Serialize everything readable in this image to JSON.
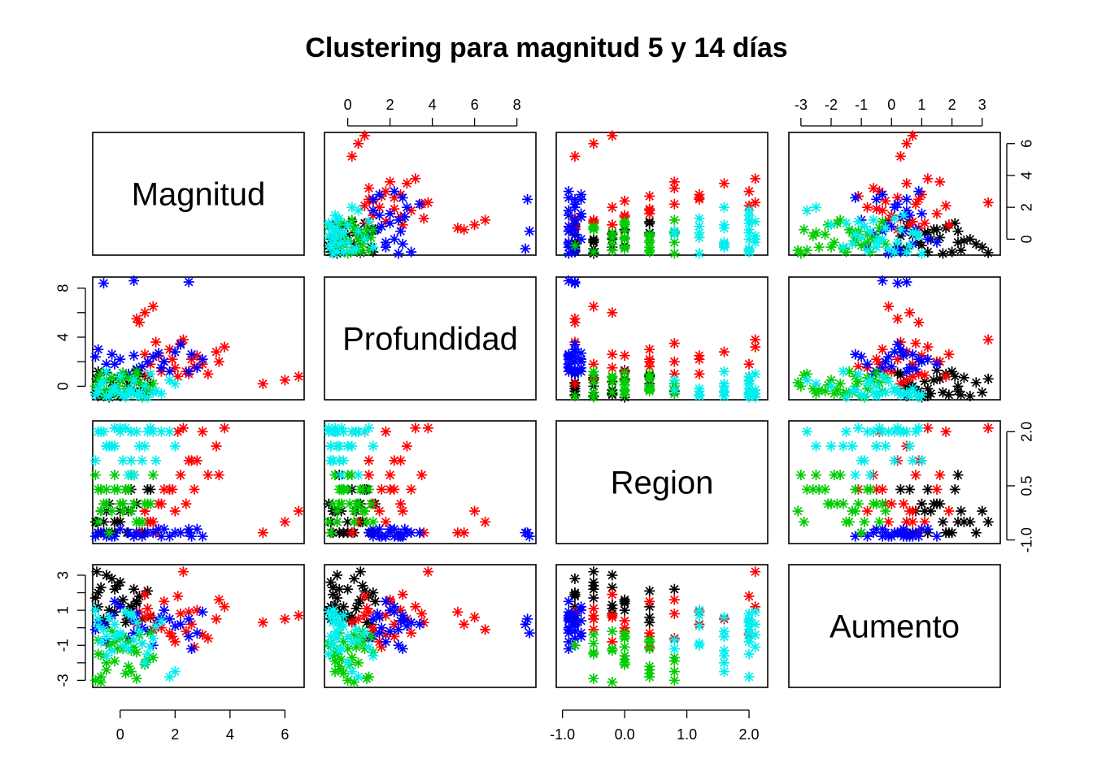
{
  "chart_data": {
    "type": "scatter",
    "title": "Clustering para magnitud 5 y 14 días",
    "variables": [
      {
        "name": "Magnitud",
        "range": [
          -1.0,
          6.7
        ],
        "ticks": [
          0,
          2,
          4,
          6
        ]
      },
      {
        "name": "Profundidad",
        "range": [
          -1.1,
          8.9
        ],
        "ticks": [
          0,
          2,
          4,
          6,
          8
        ]
      },
      {
        "name": "Region",
        "range": [
          -1.1,
          2.3
        ],
        "ticks": [
          -1.0,
          0.0,
          1.0,
          2.0
        ],
        "tick_labels": [
          "-1.0",
          "0.0",
          "1.0",
          "2.0"
        ],
        "side_ticks": [
          -1.0,
          0.5,
          2.0
        ],
        "side_tick_labels": [
          "-1.0",
          "0.5",
          "2.0"
        ]
      },
      {
        "name": "Aumento",
        "range": [
          -3.4,
          3.6
        ],
        "ticks": [
          -3,
          -2,
          -1,
          0,
          1,
          2,
          3
        ],
        "left_ticks": [
          -3,
          -1,
          1,
          3
        ]
      }
    ],
    "marker": "*",
    "clusters": [
      {
        "color": "#000000",
        "points": [
          [
            -0.8,
            -0.8,
            -0.8,
            1.2
          ],
          [
            -0.5,
            -0.5,
            -0.2,
            3.0
          ],
          [
            -0.2,
            0.0,
            -0.5,
            2.2
          ],
          [
            0.1,
            0.6,
            0.0,
            1.6
          ],
          [
            0.4,
            -0.2,
            0.4,
            1.2
          ],
          [
            -0.8,
            1.2,
            -0.8,
            2.0
          ],
          [
            -0.6,
            -0.8,
            -0.5,
            0.5
          ],
          [
            -0.3,
            0.3,
            -0.8,
            2.8
          ],
          [
            0.0,
            -0.6,
            -0.2,
            1.3
          ],
          [
            0.2,
            0.9,
            0.4,
            0.3
          ],
          [
            0.5,
            -0.4,
            0.8,
            2.2
          ],
          [
            0.7,
            1.0,
            -0.8,
            1.8
          ],
          [
            -0.7,
            0.2,
            -0.8,
            0.4
          ],
          [
            -0.4,
            -0.9,
            0.0,
            1.0
          ],
          [
            -0.1,
            0.7,
            -0.5,
            2.4
          ],
          [
            0.3,
            -0.3,
            -0.2,
            0.8
          ],
          [
            0.6,
            0.5,
            0.0,
            1.4
          ],
          [
            0.9,
            -0.7,
            -0.8,
            1.9
          ],
          [
            1.1,
            0.2,
            0.4,
            0.6
          ],
          [
            -0.9,
            -0.5,
            -0.5,
            1.7
          ],
          [
            -0.5,
            1.1,
            -0.8,
            0.2
          ],
          [
            0.0,
            -0.8,
            -0.5,
            2.6
          ],
          [
            0.4,
            0.4,
            -0.2,
            1.1
          ],
          [
            0.8,
            -0.2,
            -0.8,
            0.5
          ],
          [
            1.0,
            0.8,
            0.4,
            2.1
          ],
          [
            -0.85,
            0.6,
            -0.5,
            3.2
          ],
          [
            -0.2,
            -0.4,
            -0.8,
            0.9
          ],
          [
            0.6,
            1.3,
            0.0,
            1.5
          ],
          [
            -0.7,
            -0.7,
            -0.2,
            2.3
          ],
          [
            0.25,
            0.0,
            -0.8,
            0.7
          ]
        ]
      },
      {
        "color": "#ff0000",
        "points": [
          [
            0.6,
            5.5,
            -0.8,
            0.2
          ],
          [
            0.9,
            6.0,
            -0.2,
            0.6
          ],
          [
            1.2,
            6.5,
            -0.5,
            -0.1
          ],
          [
            0.7,
            5.2,
            -0.8,
            0.9
          ],
          [
            1.4,
            2.5,
            0.0,
            0.4
          ],
          [
            1.8,
            3.0,
            0.4,
            -0.3
          ],
          [
            2.2,
            3.5,
            0.8,
            0.8
          ],
          [
            2.6,
            2.2,
            1.2,
            0.2
          ],
          [
            3.0,
            1.8,
            2.0,
            -0.4
          ],
          [
            3.5,
            2.8,
            1.6,
            0.5
          ],
          [
            3.8,
            3.2,
            2.1,
            1.2
          ],
          [
            2.0,
            1.5,
            -0.2,
            -0.8
          ],
          [
            1.6,
            2.0,
            0.4,
            1.5
          ],
          [
            2.4,
            1.2,
            0.0,
            -0.2
          ],
          [
            1.1,
            1.8,
            -0.5,
            0.7
          ],
          [
            2.8,
            2.5,
            1.2,
            1.0
          ],
          [
            3.2,
            1.0,
            0.8,
            -0.6
          ],
          [
            1.3,
            3.6,
            -0.8,
            0.3
          ],
          [
            2.1,
            0.8,
            2.0,
            1.8
          ],
          [
            2.7,
            1.6,
            0.4,
            -1.1
          ],
          [
            5.2,
            0.2,
            -0.8,
            0.3
          ],
          [
            6.0,
            0.5,
            -0.5,
            0.5
          ],
          [
            6.5,
            0.8,
            -0.2,
            0.7
          ],
          [
            3.6,
            2.0,
            0.8,
            1.6
          ],
          [
            1.5,
            1.2,
            0.0,
            0.0
          ],
          [
            2.3,
            3.8,
            2.1,
            3.2
          ],
          [
            1.0,
            0.9,
            -0.5,
            1.1
          ],
          [
            1.9,
            2.2,
            0.4,
            -0.5
          ],
          [
            2.5,
            1.0,
            1.2,
            0.9
          ],
          [
            0.9,
            2.6,
            -0.2,
            1.9
          ]
        ]
      },
      {
        "color": "#0000ff",
        "points": [
          [
            0.5,
            2.5,
            -0.9,
            0.4
          ],
          [
            1.0,
            2.0,
            -0.8,
            -0.2
          ],
          [
            1.5,
            1.5,
            -0.9,
            0.6
          ],
          [
            2.0,
            2.8,
            -0.8,
            0.1
          ],
          [
            2.5,
            1.2,
            -0.7,
            -0.5
          ],
          [
            3.0,
            2.2,
            -0.9,
            0.9
          ],
          [
            -0.8,
            3.0,
            -0.8,
            0.3
          ],
          [
            -0.5,
            1.8,
            -0.9,
            -0.8
          ],
          [
            0.0,
            2.2,
            -0.7,
            1.2
          ],
          [
            0.8,
            1.6,
            -0.9,
            0.0
          ],
          [
            1.2,
            2.4,
            -0.8,
            -1.0
          ],
          [
            1.8,
            1.2,
            -0.9,
            0.5
          ],
          [
            2.2,
            3.4,
            -0.8,
            0.2
          ],
          [
            2.8,
            1.5,
            -0.7,
            -0.3
          ],
          [
            -0.3,
            2.6,
            -0.9,
            0.7
          ],
          [
            0.3,
            1.0,
            -0.8,
            -0.6
          ],
          [
            2.5,
            8.5,
            -0.8,
            0.5
          ],
          [
            0.5,
            8.6,
            -0.9,
            -0.3
          ],
          [
            -0.6,
            8.4,
            -0.8,
            0.2
          ],
          [
            1.6,
            2.0,
            -0.7,
            1.0
          ],
          [
            2.6,
            2.6,
            -0.9,
            -1.2
          ],
          [
            0.6,
            1.4,
            -0.8,
            0.8
          ],
          [
            -0.9,
            2.4,
            -0.9,
            -0.1
          ],
          [
            1.4,
            2.7,
            -0.7,
            0.4
          ],
          [
            -0.2,
            1.8,
            -0.9,
            1.5
          ]
        ]
      },
      {
        "color": "#00cc00",
        "points": [
          [
            -0.8,
            -0.5,
            -0.5,
            -1.5
          ],
          [
            -0.5,
            0.5,
            0.0,
            -2.0
          ],
          [
            -0.2,
            -0.2,
            0.4,
            -0.8
          ],
          [
            0.1,
            0.8,
            -0.2,
            -1.2
          ],
          [
            0.4,
            -0.6,
            0.8,
            -2.5
          ],
          [
            0.7,
            0.3,
            -0.5,
            -0.4
          ],
          [
            1.0,
            -0.3,
            0.0,
            -1.8
          ],
          [
            -0.7,
            1.0,
            0.4,
            -2.8
          ],
          [
            -0.4,
            -0.8,
            -0.8,
            -1.0
          ],
          [
            0.0,
            0.5,
            0.0,
            -0.6
          ],
          [
            0.3,
            -0.4,
            0.4,
            -2.2
          ],
          [
            0.6,
            1.2,
            -0.5,
            -1.4
          ],
          [
            -0.9,
            0.0,
            0.8,
            -3.0
          ],
          [
            -0.6,
            -0.7,
            0.0,
            -1.6
          ],
          [
            -0.3,
            0.7,
            -0.2,
            -0.2
          ],
          [
            0.2,
            -0.2,
            0.4,
            -2.6
          ],
          [
            0.5,
            0.4,
            0.0,
            -1.1
          ],
          [
            0.8,
            -0.9,
            -0.5,
            -0.9
          ],
          [
            1.2,
            0.2,
            0.8,
            -1.7
          ],
          [
            -0.5,
            -0.3,
            0.4,
            -2.4
          ],
          [
            0.1,
            1.1,
            0.0,
            -0.5
          ],
          [
            0.4,
            -0.5,
            -0.2,
            -1.3
          ],
          [
            -0.8,
            0.6,
            0.4,
            -0.7
          ],
          [
            0.9,
            0.1,
            0.0,
            -2.1
          ],
          [
            -0.2,
            -0.6,
            0.8,
            -1.9
          ],
          [
            0.6,
            0.9,
            -0.5,
            -2.9
          ],
          [
            -0.1,
            0.0,
            0.4,
            -1.2
          ],
          [
            1.1,
            -0.4,
            0.0,
            -0.3
          ],
          [
            -0.7,
            0.3,
            -0.2,
            -3.1
          ],
          [
            0.3,
            0.7,
            0.4,
            -0.8
          ]
        ]
      },
      {
        "color": "#00eeee",
        "points": [
          [
            -0.8,
            -0.5,
            2.0,
            0.5
          ],
          [
            -0.5,
            -0.8,
            1.6,
            -0.5
          ],
          [
            -0.2,
            -0.3,
            2.1,
            0.2
          ],
          [
            0.1,
            -0.7,
            1.2,
            -1.0
          ],
          [
            0.4,
            -0.6,
            2.0,
            0.8
          ],
          [
            0.7,
            -0.5,
            1.6,
            -0.2
          ],
          [
            1.0,
            -0.9,
            2.0,
            -1.5
          ],
          [
            1.3,
            -0.4,
            1.2,
            0.1
          ],
          [
            -0.7,
            0.2,
            2.0,
            -0.8
          ],
          [
            -0.4,
            -0.8,
            1.6,
            0.6
          ],
          [
            0.0,
            -0.6,
            2.1,
            -0.4
          ],
          [
            0.3,
            -0.3,
            0.8,
            -1.2
          ],
          [
            0.6,
            -0.7,
            2.0,
            0.3
          ],
          [
            0.9,
            0.0,
            1.6,
            -2.0
          ],
          [
            1.2,
            -0.5,
            2.0,
            -0.6
          ],
          [
            -0.9,
            -0.7,
            1.2,
            1.0
          ],
          [
            -0.6,
            0.4,
            2.0,
            -0.1
          ],
          [
            -0.3,
            -0.4,
            1.6,
            -1.3
          ],
          [
            0.2,
            -0.9,
            2.1,
            0.9
          ],
          [
            0.5,
            0.5,
            0.8,
            -0.7
          ],
          [
            1.8,
            0.5,
            2.0,
            -2.8
          ],
          [
            2.0,
            0.2,
            1.6,
            -2.5
          ],
          [
            -0.8,
            -0.2,
            2.0,
            0.1
          ],
          [
            0.8,
            -0.8,
            1.2,
            -0.9
          ],
          [
            1.5,
            -0.6,
            2.0,
            0.4
          ],
          [
            -0.5,
            1.2,
            1.6,
            -1.6
          ],
          [
            0.0,
            0.8,
            2.0,
            -0.3
          ],
          [
            0.4,
            -0.2,
            1.2,
            0.7
          ],
          [
            1.1,
            1.0,
            2.1,
            -1.1
          ],
          [
            -0.2,
            0.0,
            1.6,
            -0.5
          ]
        ]
      }
    ]
  }
}
